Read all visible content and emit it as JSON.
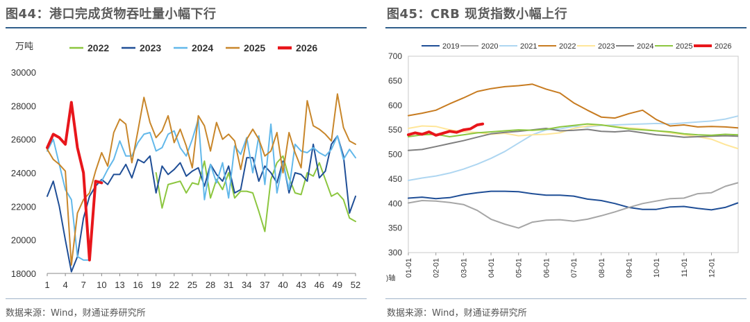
{
  "left": {
    "title": "图44：港口完成货物吞吐量小幅下行",
    "source": "数据来源：Wind，财通证券研究所",
    "chart_data": {
      "type": "line",
      "ylabel": "万吨",
      "ylim": [
        18000,
        30000
      ],
      "yticks": [
        18000,
        20000,
        22000,
        24000,
        26000,
        28000,
        30000
      ],
      "xlim": [
        1,
        52
      ],
      "xticks": [
        1,
        4,
        7,
        10,
        13,
        16,
        19,
        22,
        25,
        28,
        31,
        34,
        37,
        40,
        43,
        46,
        49,
        52
      ],
      "legend_position": "top",
      "series": [
        {
          "name": "2022",
          "color": "#8cc63f",
          "width": 2,
          "x": [
            19,
            20,
            21,
            22,
            23,
            24,
            25,
            26,
            27,
            28,
            29,
            30,
            31,
            32,
            33,
            34,
            35,
            36,
            37,
            38,
            39,
            40,
            41,
            42,
            43,
            44,
            45,
            46,
            47,
            48,
            49,
            50,
            51,
            52
          ],
          "y": [
            24000,
            21900,
            23300,
            23400,
            23500,
            22800,
            23400,
            23300,
            24700,
            22500,
            23600,
            23000,
            24000,
            22500,
            22900,
            22900,
            22800,
            21700,
            20500,
            23600,
            24600,
            25000,
            23700,
            22800,
            22700,
            24000,
            23800,
            24600,
            23600,
            22600,
            22800,
            22400,
            21300,
            21100
          ]
        },
        {
          "name": "2023",
          "color": "#1f4e96",
          "width": 2,
          "x": [
            1,
            2,
            3,
            4,
            5,
            6,
            7,
            8,
            9,
            10,
            11,
            12,
            13,
            14,
            15,
            16,
            17,
            18,
            19,
            20,
            21,
            22,
            23,
            24,
            25,
            26,
            27,
            28,
            29,
            30,
            31,
            32,
            33,
            34,
            35,
            36,
            37,
            38,
            39,
            40,
            41,
            42,
            43,
            44,
            45,
            46,
            47,
            48,
            49,
            50,
            51,
            52
          ],
          "y": [
            22600,
            23500,
            22000,
            20000,
            18100,
            19000,
            21300,
            22600,
            23200,
            23600,
            23300,
            23900,
            23900,
            24500,
            23700,
            24800,
            24600,
            25000,
            22800,
            24400,
            23900,
            24200,
            24600,
            23800,
            24100,
            24300,
            23200,
            24500,
            23900,
            23500,
            24400,
            22800,
            23000,
            24900,
            24900,
            23500,
            24400,
            24000,
            23400,
            24700,
            22800,
            24000,
            23900,
            23500,
            25700,
            23700,
            24100,
            25700,
            26200,
            25000,
            21600,
            22600
          ]
        },
        {
          "name": "2024",
          "color": "#62b8ea",
          "width": 2,
          "x": [
            1,
            2,
            3,
            4,
            5,
            6,
            7,
            8,
            9,
            10,
            11,
            12,
            13,
            14,
            15,
            16,
            17,
            18,
            19,
            20,
            21,
            22,
            23,
            24,
            25,
            26,
            27,
            28,
            29,
            30,
            31,
            32,
            33,
            34,
            35,
            36,
            37,
            38,
            39,
            40,
            41,
            42,
            43,
            44,
            45,
            46,
            47,
            48,
            49,
            50,
            51,
            52
          ],
          "y": [
            25300,
            26000,
            24500,
            23000,
            22400,
            19000,
            18800,
            18800,
            23500,
            23500,
            24200,
            24800,
            25900,
            25000,
            25000,
            25800,
            26300,
            26400,
            25300,
            25500,
            26300,
            26500,
            25500,
            25000,
            26000,
            27200,
            22400,
            24500,
            23400,
            24600,
            22500,
            25600,
            25100,
            26100,
            24000,
            26200,
            23300,
            26900,
            22800,
            24600,
            23000,
            25700,
            25300,
            25200,
            25500,
            25200,
            25000,
            25400,
            26200,
            24800,
            25400,
            24900
          ]
        },
        {
          "name": "2025",
          "color": "#c8862a",
          "width": 2,
          "x": [
            1,
            2,
            3,
            4,
            5,
            6,
            7,
            8,
            9,
            10,
            11,
            12,
            13,
            14,
            15,
            16,
            17,
            18,
            19,
            20,
            21,
            22,
            23,
            24,
            25,
            26,
            27,
            28,
            29,
            30,
            31,
            32,
            33,
            34,
            35,
            36,
            37,
            38,
            39,
            40,
            41,
            42,
            43,
            44,
            45,
            46,
            47,
            48,
            49,
            50,
            51,
            52
          ],
          "y": [
            25400,
            24800,
            24500,
            24100,
            18500,
            21600,
            22400,
            22800,
            24100,
            25200,
            24400,
            26400,
            27200,
            26900,
            24600,
            26500,
            28500,
            27000,
            26100,
            26500,
            27400,
            25800,
            26600,
            25600,
            24300,
            27400,
            26800,
            25300,
            27000,
            26000,
            26300,
            25900,
            24200,
            26000,
            26600,
            26000,
            25000,
            25300,
            26400,
            24000,
            26400,
            25200,
            24300,
            28300,
            26800,
            26600,
            26300,
            25900,
            28700,
            26700,
            25900,
            25700
          ]
        },
        {
          "name": "2026",
          "color": "#e8161b",
          "width": 4,
          "x": [
            1,
            2,
            3,
            4,
            5,
            6,
            7,
            8,
            9,
            10
          ],
          "y": [
            25500,
            26300,
            26100,
            25700,
            28200,
            25500,
            24000,
            18800,
            23500,
            23400
          ]
        }
      ]
    }
  },
  "right": {
    "title": "图45：CRB 现货指数小幅上行",
    "source": "数据来源：Wind，财通证券研究所",
    "axis_note": ")轴",
    "chart_data": {
      "type": "line",
      "ylim": [
        300,
        700
      ],
      "yticks": [
        300,
        350,
        400,
        450,
        500,
        550,
        600,
        650,
        700
      ],
      "xlim": [
        1,
        12.97
      ],
      "xticks": [
        "01-01",
        "02-01",
        "03-01",
        "04-01",
        "05-01",
        "06-01",
        "07-01",
        "08-01",
        "09-01",
        "10-01",
        "11-01",
        "12-01"
      ],
      "legend_position": "top",
      "series": [
        {
          "name": "2019",
          "color": "#1f4e96",
          "width": 2,
          "x": [
            1,
            1.5,
            2,
            2.5,
            3,
            3.5,
            4,
            4.5,
            5,
            5.5,
            6,
            6.5,
            7,
            7.5,
            8,
            8.5,
            9,
            9.5,
            10,
            10.5,
            11,
            11.5,
            12,
            12.5,
            12.95
          ],
          "y": [
            411,
            413,
            410,
            412,
            418,
            422,
            425,
            425,
            424,
            420,
            417,
            417,
            415,
            409,
            406,
            400,
            392,
            388,
            388,
            393,
            394,
            390,
            387,
            392,
            401
          ]
        },
        {
          "name": "2020",
          "color": "#a6a6a6",
          "width": 2,
          "x": [
            1,
            1.5,
            2,
            2.5,
            3,
            3.5,
            4,
            4.5,
            5,
            5.5,
            6,
            6.5,
            7,
            7.5,
            8,
            8.5,
            9,
            9.5,
            10,
            10.5,
            11,
            11.5,
            12,
            12.5,
            12.95
          ],
          "y": [
            401,
            406,
            405,
            402,
            398,
            386,
            368,
            358,
            350,
            362,
            366,
            367,
            364,
            368,
            375,
            383,
            392,
            400,
            405,
            410,
            411,
            420,
            422,
            435,
            442
          ]
        },
        {
          "name": "2021",
          "color": "#aed6f1",
          "width": 2,
          "x": [
            1,
            1.5,
            2,
            2.5,
            3,
            3.5,
            4,
            4.5,
            5,
            5.5,
            6,
            6.5,
            7,
            7.5,
            8,
            8.5,
            9,
            9.5,
            10,
            10.5,
            11,
            11.5,
            12,
            12.5,
            12.95
          ],
          "y": [
            447,
            452,
            456,
            462,
            470,
            480,
            492,
            506,
            523,
            540,
            550,
            552,
            557,
            556,
            559,
            560,
            561,
            562,
            563,
            562,
            564,
            566,
            568,
            572,
            578
          ]
        },
        {
          "name": "2022",
          "color": "#c77b20",
          "width": 2,
          "x": [
            1,
            1.5,
            2,
            2.5,
            3,
            3.5,
            4,
            4.5,
            5,
            5.5,
            6,
            6.5,
            7,
            7.5,
            8,
            8.5,
            9,
            9.5,
            10,
            10.5,
            11,
            11.5,
            12,
            12.5,
            12.95
          ],
          "y": [
            579,
            584,
            590,
            603,
            615,
            628,
            634,
            638,
            640,
            643,
            633,
            625,
            605,
            590,
            576,
            574,
            583,
            590,
            571,
            558,
            560,
            556,
            557,
            556,
            554
          ]
        },
        {
          "name": "2023",
          "color": "#ffe699",
          "width": 2,
          "x": [
            1,
            1.5,
            2,
            2.5,
            3,
            3.5,
            4,
            4.5,
            5,
            5.5,
            6,
            6.5,
            7,
            7.5,
            8,
            8.5,
            9,
            9.5,
            10,
            10.5,
            11,
            11.5,
            12,
            12.5,
            12.95
          ],
          "y": [
            553,
            558,
            557,
            550,
            546,
            545,
            541,
            543,
            538,
            540,
            541,
            544,
            553,
            558,
            560,
            557,
            554,
            552,
            548,
            544,
            540,
            536,
            531,
            520,
            512
          ]
        },
        {
          "name": "2024",
          "color": "#7f7f7f",
          "width": 2,
          "x": [
            1,
            1.5,
            2,
            2.5,
            3,
            3.5,
            4,
            4.5,
            5,
            5.5,
            6,
            6.5,
            7,
            7.5,
            8,
            8.5,
            9,
            9.5,
            10,
            10.5,
            11,
            11.5,
            12,
            12.5,
            12.95
          ],
          "y": [
            508,
            510,
            516,
            522,
            528,
            535,
            542,
            545,
            547,
            550,
            553,
            548,
            549,
            551,
            547,
            546,
            548,
            544,
            540,
            538,
            535,
            536,
            537,
            538,
            537
          ]
        },
        {
          "name": "2025",
          "color": "#8cc63f",
          "width": 2,
          "x": [
            1,
            1.5,
            2,
            2.5,
            3,
            3.5,
            4,
            4.5,
            5,
            5.5,
            6,
            6.5,
            7,
            7.5,
            8,
            8.5,
            9,
            9.5,
            10,
            10.5,
            11,
            11.5,
            12,
            12.5,
            12.95
          ],
          "y": [
            536,
            540,
            541,
            536,
            540,
            544,
            546,
            548,
            550,
            549,
            551,
            556,
            559,
            562,
            560,
            556,
            552,
            550,
            548,
            546,
            542,
            540,
            539,
            541,
            540
          ]
        },
        {
          "name": "2026",
          "color": "#e8161b",
          "width": 4,
          "x": [
            1,
            1.25,
            1.5,
            1.75,
            2,
            2.25,
            2.5,
            2.75,
            3,
            3.25,
            3.5,
            3.7
          ],
          "y": [
            540,
            544,
            541,
            546,
            539,
            543,
            547,
            545,
            550,
            552,
            560,
            562
          ]
        }
      ]
    }
  }
}
